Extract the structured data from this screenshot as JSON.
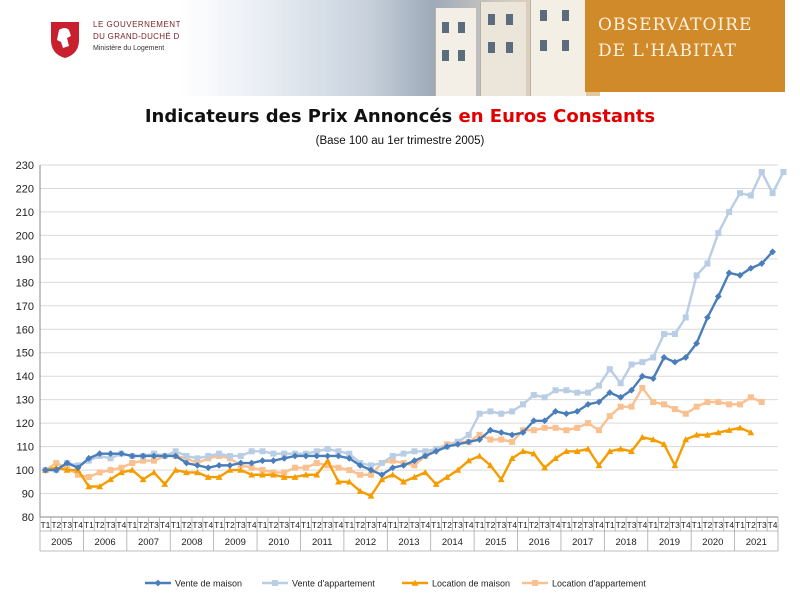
{
  "header": {
    "gov_line1": "LE GOUVERNEMENT",
    "gov_line2": "DU GRAND-DUCHÉ DE LUXEMBOURG",
    "gov_line3": "Ministère du Logement",
    "obs_line1": "OBSERVATOIRE",
    "obs_line2": "DE L'HABITAT"
  },
  "chart_data": {
    "type": "line",
    "title_part1": "Indicateurs des Prix Annoncés ",
    "title_part2": "en Euros Constants",
    "subtitle": "(Base 100 au 1er trimestre 2005)",
    "ylim": [
      80,
      230
    ],
    "yticks": [
      80,
      90,
      100,
      110,
      120,
      130,
      140,
      150,
      160,
      170,
      180,
      190,
      200,
      210,
      220,
      230
    ],
    "quarter_labels": [
      "T1",
      "T2",
      "T3",
      "T4"
    ],
    "years": [
      "2005",
      "2006",
      "2007",
      "2008",
      "2009",
      "2010",
      "2011",
      "2012",
      "2013",
      "2014",
      "2015",
      "2016",
      "2017",
      "2018",
      "2019",
      "2020",
      "2021"
    ],
    "grid": true,
    "legend_position": "bottom",
    "series": [
      {
        "name": "Vente de maison",
        "color": "#4a7ebb",
        "marker": "diamond",
        "values": [
          100,
          100,
          103,
          101,
          105,
          107,
          107,
          107,
          106,
          106,
          106,
          106,
          106,
          103,
          102,
          101,
          102,
          102,
          103,
          103,
          104,
          104,
          105,
          106,
          106,
          106,
          106,
          106,
          105,
          102,
          100,
          98,
          101,
          102,
          104,
          106,
          108,
          110,
          111,
          112,
          113,
          117,
          116,
          115,
          116,
          121,
          121,
          125,
          124,
          125,
          128,
          129,
          133,
          131,
          134,
          140,
          139,
          148,
          146,
          148,
          154,
          165,
          174,
          184,
          183,
          186,
          188,
          193
        ]
      },
      {
        "name": "Vente d'appartement",
        "color": "#b9cde5",
        "marker": "square",
        "values": [
          100,
          100,
          103,
          102,
          104,
          106,
          105,
          107,
          106,
          106,
          107,
          106,
          108,
          106,
          105,
          106,
          107,
          106,
          106,
          108,
          108,
          107,
          107,
          107,
          107,
          108,
          109,
          108,
          107,
          103,
          102,
          103,
          106,
          107,
          108,
          108,
          109,
          110,
          112,
          115,
          124,
          125,
          124,
          125,
          128,
          132,
          131,
          134,
          134,
          133,
          133,
          136,
          143,
          137,
          145,
          146,
          148,
          158,
          158,
          165,
          183,
          188,
          201,
          210,
          218,
          217,
          227,
          218,
          227
        ]
      },
      {
        "name": "Location de maison",
        "color": "#f59d00",
        "marker": "triangle",
        "values": [
          100,
          101,
          100,
          100,
          93,
          93,
          96,
          99,
          100,
          96,
          99,
          94,
          100,
          99,
          99,
          97,
          97,
          100,
          100,
          98,
          98,
          98,
          97,
          97,
          98,
          98,
          104,
          95,
          95,
          91,
          89,
          96,
          98,
          95,
          97,
          99,
          94,
          97,
          100,
          104,
          106,
          102,
          96,
          105,
          108,
          107,
          101,
          105,
          108,
          108,
          109,
          102,
          108,
          109,
          108,
          114,
          113,
          111,
          102,
          113,
          115,
          115,
          116,
          117,
          118,
          116
        ]
      },
      {
        "name": "Location d'appartement",
        "color": "#fac090",
        "marker": "square",
        "values": [
          100,
          103,
          101,
          98,
          97,
          99,
          100,
          101,
          103,
          104,
          104,
          106,
          106,
          105,
          103,
          105,
          106,
          105,
          102,
          101,
          100,
          99,
          99,
          101,
          101,
          103,
          102,
          101,
          100,
          98,
          98,
          103,
          104,
          103,
          102,
          106,
          109,
          111,
          112,
          112,
          115,
          113,
          113,
          112,
          117,
          117,
          118,
          118,
          117,
          118,
          120,
          117,
          123,
          127,
          127,
          135,
          129,
          128,
          126,
          124,
          127,
          129,
          129,
          128,
          128,
          131,
          129
        ]
      }
    ]
  }
}
